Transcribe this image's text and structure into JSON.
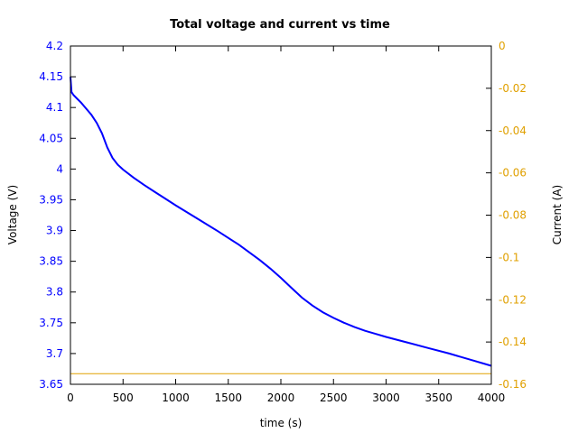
{
  "chart_data": {
    "type": "line",
    "title": "Total voltage and current vs time",
    "xlabel": "time (s)",
    "ylabel": "Voltage (V)",
    "y2label": "Current (A)",
    "xlim": [
      0,
      4000
    ],
    "ylim": [
      3.65,
      4.2
    ],
    "y2lim": [
      -0.16,
      0
    ],
    "grid": false,
    "x_ticks": [
      "0",
      "500",
      "1000",
      "1500",
      "2000",
      "2500",
      "3000",
      "3500",
      "4000"
    ],
    "y_ticks": [
      "3.65",
      "3.7",
      "3.75",
      "3.8",
      "3.85",
      "3.9",
      "3.95",
      "4",
      "4.05",
      "4.1",
      "4.15",
      "4.2"
    ],
    "y2_ticks": [
      "-0.16",
      "-0.14",
      "-0.12",
      "-0.1",
      "-0.08",
      "-0.06",
      "-0.04",
      "-0.02",
      "0"
    ],
    "series": [
      {
        "name": "Voltage",
        "axis": "left",
        "color": "#0000ff",
        "x": [
          0,
          10,
          30,
          60,
          100,
          150,
          200,
          250,
          300,
          350,
          400,
          450,
          500,
          600,
          700,
          800,
          900,
          1000,
          1200,
          1400,
          1600,
          1800,
          1900,
          2000,
          2100,
          2200,
          2300,
          2400,
          2500,
          2600,
          2700,
          2800,
          2900,
          3000,
          3200,
          3400,
          3600,
          3800,
          4000
        ],
        "y": [
          4.15,
          4.125,
          4.12,
          4.115,
          4.108,
          4.098,
          4.088,
          4.075,
          4.058,
          4.035,
          4.018,
          4.007,
          3.999,
          3.986,
          3.974,
          3.963,
          3.952,
          3.941,
          3.92,
          3.899,
          3.877,
          3.852,
          3.838,
          3.823,
          3.807,
          3.791,
          3.778,
          3.767,
          3.758,
          3.75,
          3.743,
          3.737,
          3.732,
          3.727,
          3.718,
          3.709,
          3.7,
          3.69,
          3.68
        ]
      },
      {
        "name": "Current",
        "axis": "right",
        "color": "#e0a000",
        "x": [
          0,
          4000
        ],
        "y": [
          -0.155,
          -0.155
        ]
      }
    ]
  }
}
